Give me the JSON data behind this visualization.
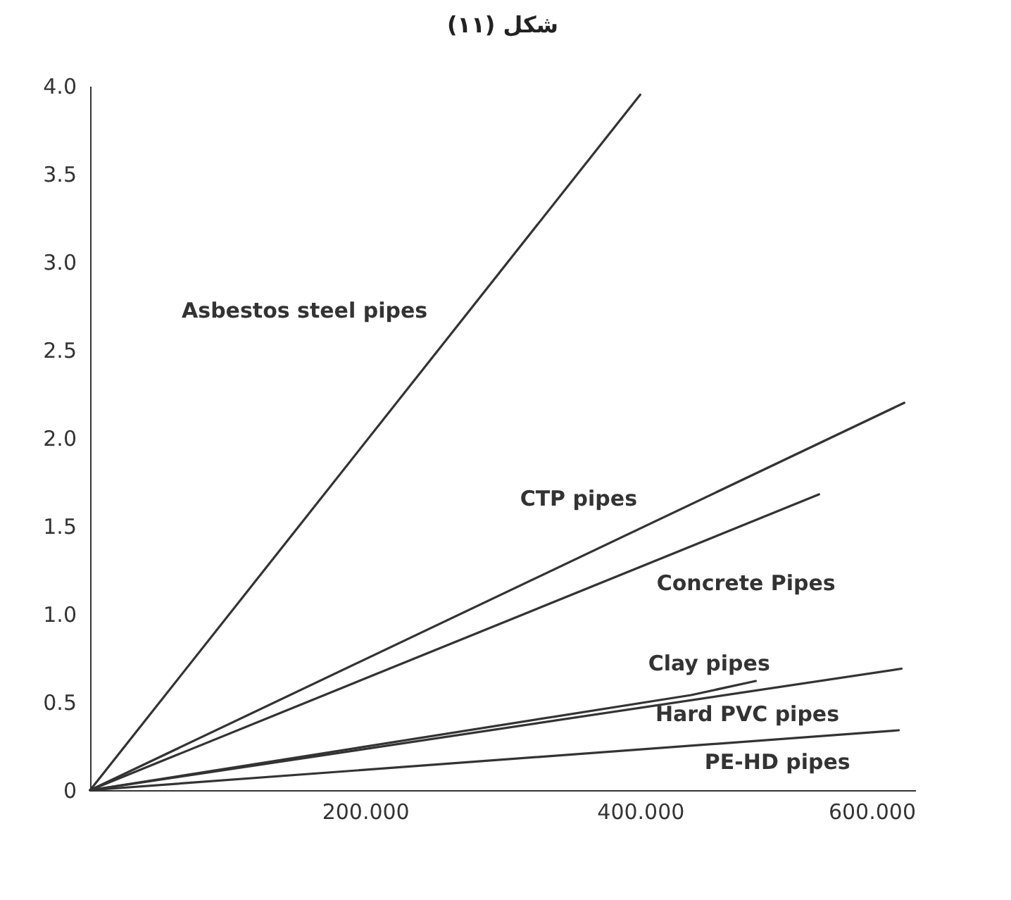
{
  "chart_data": {
    "type": "line",
    "title": "شكل (١١)",
    "series": [
      {
        "name": "Asbestos steel pipes",
        "color": "#333333",
        "x": [
          0,
          400
        ],
        "values": [
          0,
          3.95
        ]
      },
      {
        "name": "CTP pipes",
        "color": "#333333",
        "x": [
          0,
          592
        ],
        "values": [
          0,
          2.2
        ]
      },
      {
        "name": "Concrete Pipes",
        "color": "#333333",
        "x": [
          0,
          530
        ],
        "values": [
          0,
          1.68
        ]
      },
      {
        "name": "Clay pipes",
        "color": "#333333",
        "x": [
          0,
          437,
          484
        ],
        "values": [
          0,
          0.54,
          0.62
        ]
      },
      {
        "name": "Hard PVC pipes",
        "color": "#333333",
        "x": [
          0,
          590
        ],
        "values": [
          0,
          0.69
        ]
      },
      {
        "name": "PE-HD pipes",
        "color": "#333333",
        "x": [
          0,
          588
        ],
        "values": [
          0,
          0.34
        ]
      }
    ],
    "xlim": [
      0,
      600
    ],
    "ylim": [
      0,
      4
    ],
    "xticks": [
      {
        "value": 200,
        "label": "200.000"
      },
      {
        "value": 400,
        "label": "400.000"
      },
      {
        "value": 600,
        "label": "600.000"
      }
    ],
    "yticks": [
      0,
      0.5,
      {
        "value": 1,
        "label": "1.0"
      },
      1.5,
      {
        "value": 2,
        "label": "2.0"
      },
      2.5,
      {
        "value": 3,
        "label": "3.0"
      },
      3.5,
      {
        "value": 4,
        "label": "4.0"
      }
    ],
    "grid": false,
    "legend": false,
    "line_style": "solid",
    "marker": "none"
  }
}
